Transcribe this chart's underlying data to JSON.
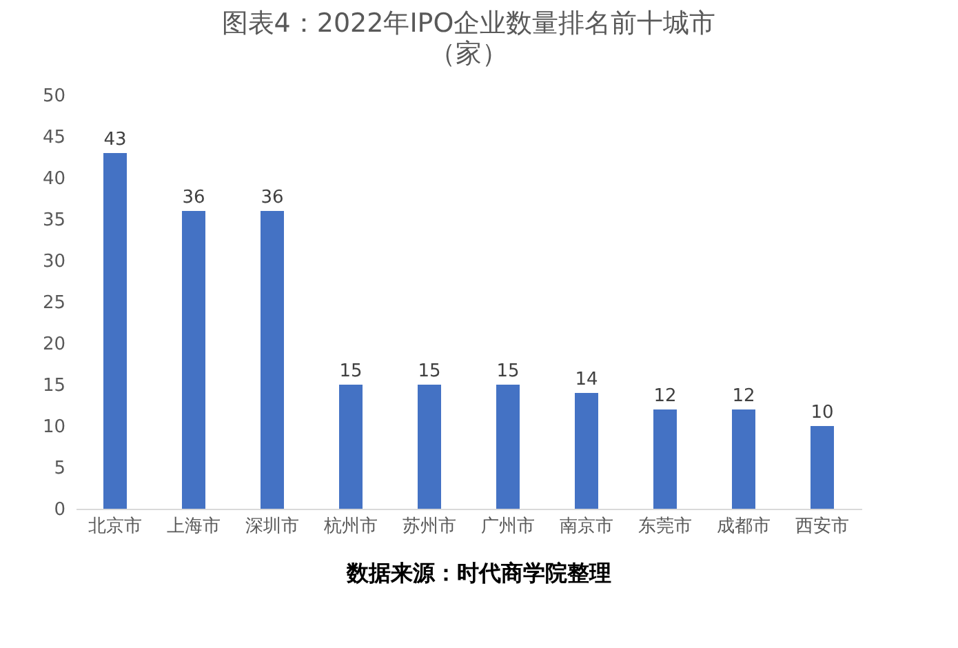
{
  "chart_data": {
    "type": "bar",
    "title": "图表4：2022年IPO企业数量排名前十城市",
    "subtitle": "（家）",
    "categories": [
      "北京市",
      "上海市",
      "深圳市",
      "杭州市",
      "苏州市",
      "广州市",
      "南京市",
      "东莞市",
      "成都市",
      "西安市"
    ],
    "values": [
      43,
      36,
      36,
      15,
      15,
      15,
      14,
      12,
      12,
      10
    ],
    "color": "#4472c4",
    "ylim": [
      0,
      50
    ],
    "yticks": [
      0,
      5,
      10,
      15,
      20,
      25,
      30,
      35,
      40,
      45,
      50
    ],
    "grid": false,
    "data_labels": true,
    "annotations": [
      "数据来源：时代商学院整理"
    ]
  }
}
